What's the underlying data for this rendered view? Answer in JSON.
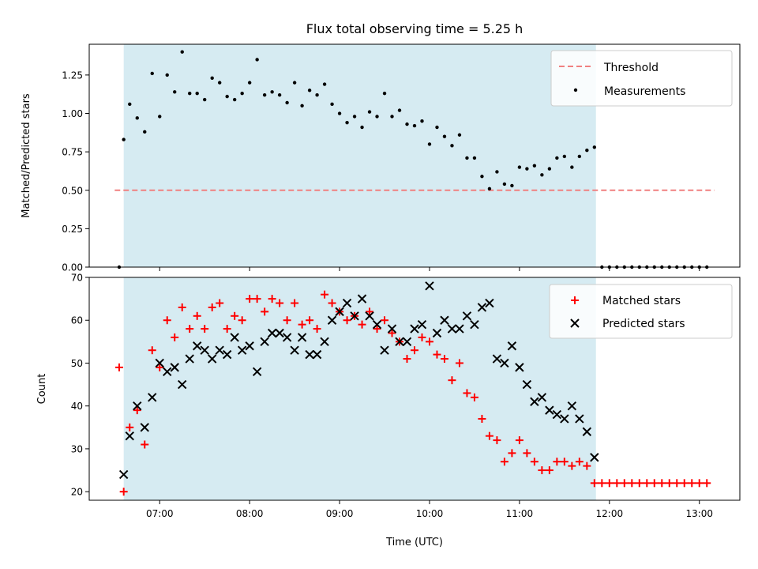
{
  "chart_data": [
    {
      "type": "scatter",
      "title": "Flux total observing time = 5.25 h",
      "xlabel": "",
      "ylabel": "Matched/Predicted stars",
      "ylim": [
        0,
        1.45
      ],
      "yticks": [
        "0.00",
        "0.25",
        "0.50",
        "0.75",
        "1.00",
        "1.25"
      ],
      "shaded_interval": [
        "06:36",
        "11:51"
      ],
      "legend": {
        "placement": "upper right"
      },
      "series": [
        {
          "name": "Threshold",
          "kind": "dashed-line",
          "color": "#f08080",
          "x": [
            "06:30",
            "13:10"
          ],
          "y": [
            0.5,
            0.5
          ]
        },
        {
          "name": "Measurements",
          "kind": "dots",
          "color": "#000000",
          "x": [
            "06:33",
            "06:36",
            "06:40",
            "06:45",
            "06:50",
            "06:55",
            "07:00",
            "07:05",
            "07:10",
            "07:15",
            "07:20",
            "07:25",
            "07:30",
            "07:35",
            "07:40",
            "07:45",
            "07:50",
            "07:55",
            "08:00",
            "08:05",
            "08:10",
            "08:15",
            "08:20",
            "08:25",
            "08:30",
            "08:35",
            "08:40",
            "08:45",
            "08:50",
            "08:55",
            "09:00",
            "09:05",
            "09:10",
            "09:15",
            "09:20",
            "09:25",
            "09:30",
            "09:35",
            "09:40",
            "09:45",
            "09:50",
            "09:55",
            "10:00",
            "10:05",
            "10:10",
            "10:15",
            "10:20",
            "10:25",
            "10:30",
            "10:35",
            "10:40",
            "10:45",
            "10:50",
            "10:55",
            "11:00",
            "11:05",
            "11:10",
            "11:15",
            "11:20",
            "11:25",
            "11:30",
            "11:35",
            "11:40",
            "11:45",
            "11:50",
            "11:55",
            "12:00",
            "12:05",
            "12:10",
            "12:15",
            "12:20",
            "12:25",
            "12:30",
            "12:35",
            "12:40",
            "12:45",
            "12:50",
            "12:55",
            "13:00",
            "13:05"
          ],
          "y": [
            0.0,
            0.83,
            1.06,
            0.97,
            0.88,
            1.26,
            0.98,
            1.25,
            1.14,
            1.4,
            1.13,
            1.13,
            1.09,
            1.23,
            1.2,
            1.11,
            1.09,
            1.13,
            1.2,
            1.35,
            1.12,
            1.14,
            1.12,
            1.07,
            1.2,
            1.05,
            1.15,
            1.12,
            1.19,
            1.06,
            1.0,
            0.94,
            0.98,
            0.91,
            1.01,
            0.98,
            1.13,
            0.98,
            1.02,
            0.93,
            0.92,
            0.95,
            0.8,
            0.91,
            0.85,
            0.79,
            0.86,
            0.71,
            0.71,
            0.59,
            0.51,
            0.62,
            0.54,
            0.53,
            0.65,
            0.64,
            0.66,
            0.6,
            0.64,
            0.71,
            0.72,
            0.65,
            0.72,
            0.76,
            0.78,
            0.0,
            0.0,
            0.0,
            0.0,
            0.0,
            0.0,
            0.0,
            0.0,
            0.0,
            0.0,
            0.0,
            0.0,
            0.0,
            0.0,
            0.0
          ]
        }
      ]
    },
    {
      "type": "scatter",
      "title": "",
      "xlabel": "Time (UTC)",
      "ylabel": "Count",
      "ylim": [
        18,
        70
      ],
      "yticks": [
        "20",
        "30",
        "40",
        "50",
        "60",
        "70"
      ],
      "xticks": [
        "07:00",
        "08:00",
        "09:00",
        "10:00",
        "11:00",
        "12:00",
        "13:00"
      ],
      "xlim": [
        "06:13",
        "13:27"
      ],
      "shaded_interval": [
        "06:36",
        "11:51"
      ],
      "legend": {
        "placement": "upper right"
      },
      "series": [
        {
          "name": "Matched stars",
          "kind": "plus",
          "color": "#ff0000",
          "x": [
            "06:33",
            "06:36",
            "06:40",
            "06:45",
            "06:50",
            "06:55",
            "07:00",
            "07:05",
            "07:10",
            "07:15",
            "07:20",
            "07:25",
            "07:30",
            "07:35",
            "07:40",
            "07:45",
            "07:50",
            "07:55",
            "08:00",
            "08:05",
            "08:10",
            "08:15",
            "08:20",
            "08:25",
            "08:30",
            "08:35",
            "08:40",
            "08:45",
            "08:50",
            "08:55",
            "09:00",
            "09:05",
            "09:10",
            "09:15",
            "09:20",
            "09:25",
            "09:30",
            "09:35",
            "09:40",
            "09:45",
            "09:50",
            "09:55",
            "10:00",
            "10:05",
            "10:10",
            "10:15",
            "10:20",
            "10:25",
            "10:30",
            "10:35",
            "10:40",
            "10:45",
            "10:50",
            "10:55",
            "11:00",
            "11:05",
            "11:10",
            "11:15",
            "11:20",
            "11:25",
            "11:30",
            "11:35",
            "11:40",
            "11:45",
            "11:50",
            "11:55",
            "12:00",
            "12:05",
            "12:10",
            "12:15",
            "12:20",
            "12:25",
            "12:30",
            "12:35",
            "12:40",
            "12:45",
            "12:50",
            "12:55",
            "13:00",
            "13:05"
          ],
          "y": [
            49,
            20,
            35,
            39,
            31,
            53,
            49,
            60,
            56,
            63,
            58,
            61,
            58,
            63,
            64,
            58,
            61,
            60,
            65,
            65,
            62,
            65,
            64,
            60,
            64,
            59,
            60,
            58,
            66,
            64,
            62,
            60,
            61,
            59,
            62,
            58,
            60,
            57,
            55,
            51,
            53,
            56,
            55,
            52,
            51,
            46,
            50,
            43,
            42,
            37,
            33,
            32,
            27,
            29,
            32,
            29,
            27,
            25,
            25,
            27,
            27,
            26,
            27,
            26,
            22,
            22,
            22,
            22,
            22,
            22,
            22,
            22,
            22,
            22,
            22,
            22,
            22,
            22,
            22,
            22
          ]
        },
        {
          "name": "Predicted stars",
          "kind": "x",
          "color": "#000000",
          "x": [
            "06:36",
            "06:40",
            "06:45",
            "06:50",
            "06:55",
            "07:00",
            "07:05",
            "07:10",
            "07:15",
            "07:20",
            "07:25",
            "07:30",
            "07:35",
            "07:40",
            "07:45",
            "07:50",
            "07:55",
            "08:00",
            "08:05",
            "08:10",
            "08:15",
            "08:20",
            "08:25",
            "08:30",
            "08:35",
            "08:40",
            "08:45",
            "08:50",
            "08:55",
            "09:00",
            "09:05",
            "09:10",
            "09:15",
            "09:20",
            "09:25",
            "09:30",
            "09:35",
            "09:40",
            "09:45",
            "09:50",
            "09:55",
            "10:00",
            "10:05",
            "10:10",
            "10:15",
            "10:20",
            "10:25",
            "10:30",
            "10:35",
            "10:40",
            "10:45",
            "10:50",
            "10:55",
            "11:00",
            "11:05",
            "11:10",
            "11:15",
            "11:20",
            "11:25",
            "11:30",
            "11:35",
            "11:40",
            "11:45",
            "11:50"
          ],
          "y": [
            24,
            33,
            40,
            35,
            42,
            50,
            48,
            49,
            45,
            51,
            54,
            53,
            51,
            53,
            52,
            56,
            53,
            54,
            48,
            55,
            57,
            57,
            56,
            53,
            56,
            52,
            52,
            55,
            60,
            62,
            64,
            61,
            65,
            61,
            59,
            53,
            58,
            55,
            55,
            58,
            59,
            68,
            57,
            60,
            58,
            58,
            61,
            59,
            63,
            64,
            51,
            50,
            54,
            49,
            45,
            41,
            42,
            39,
            38,
            37,
            40,
            37,
            34,
            28
          ]
        }
      ]
    }
  ]
}
